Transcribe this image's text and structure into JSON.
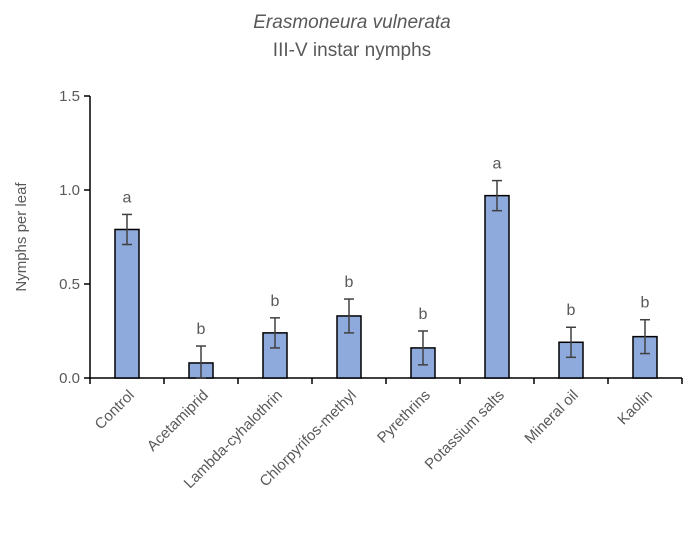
{
  "chart_data": {
    "type": "bar",
    "title": "Erasmoneura vulnerata",
    "subtitle": "III-V instar nymphs",
    "xlabel": "",
    "ylabel": "Nymphs per leaf",
    "ylim": [
      0,
      1.5
    ],
    "yticks": [
      "0.0",
      "0.5",
      "1.0",
      "1.5"
    ],
    "categories": [
      "Control",
      "Acetamiprid",
      "Lambda-cyhalothrin",
      "Chlorpyrifos-methyl",
      "Pyrethrins",
      "Potassium salts",
      "Mineral oil",
      "Kaolin"
    ],
    "values": [
      0.79,
      0.08,
      0.24,
      0.33,
      0.16,
      0.97,
      0.19,
      0.22
    ],
    "errors": [
      0.08,
      0.09,
      0.08,
      0.09,
      0.09,
      0.08,
      0.08,
      0.09
    ],
    "significance": [
      "a",
      "b",
      "b",
      "b",
      "b",
      "a",
      "b",
      "b"
    ],
    "bar_color": "#8EA9DB",
    "bar_edge_color": "#000000",
    "grid": false,
    "legend": "none"
  }
}
